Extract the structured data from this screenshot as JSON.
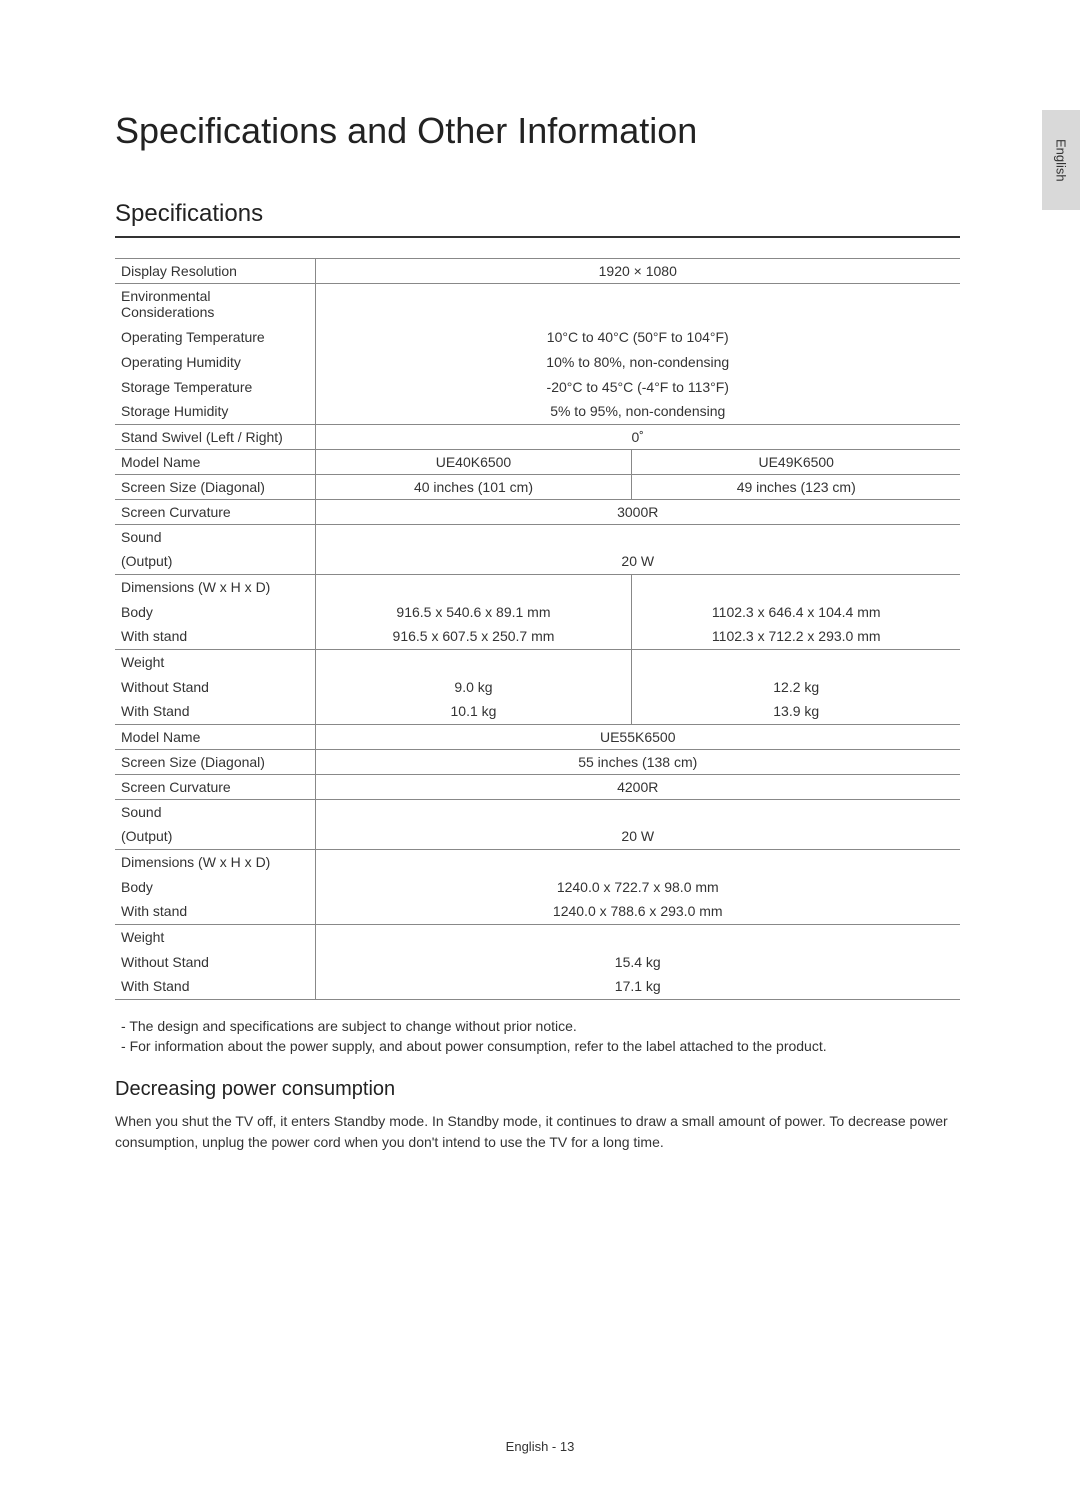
{
  "sideTab": "English",
  "title": "Specifications and Other Information",
  "section": "Specifications",
  "rows": {
    "displayRes": {
      "label": "Display Resolution",
      "value": "1920 × 1080"
    },
    "envCons": {
      "label": "Environmental Considerations"
    },
    "opTemp": {
      "label": "Operating Temperature",
      "value": "10°C to 40°C (50°F to 104°F)"
    },
    "opHum": {
      "label": "Operating Humidity",
      "value": "10% to 80%, non-condensing"
    },
    "stTemp": {
      "label": "Storage Temperature",
      "value": "-20°C to 45°C (-4°F to 113°F)"
    },
    "stHum": {
      "label": "Storage Humidity",
      "value": "5% to 95%, non-condensing"
    },
    "swivel": {
      "label": "Stand Swivel (Left / Right)",
      "value": "0˚"
    },
    "model1": {
      "label": "Model Name",
      "a": "UE40K6500",
      "b": "UE49K6500"
    },
    "screen1": {
      "label": "Screen Size (Diagonal)",
      "a": "40 inches (101 cm)",
      "b": "49 inches (123 cm)"
    },
    "curv1": {
      "label": "Screen Curvature",
      "value": "3000R"
    },
    "sound1": {
      "label": "Sound"
    },
    "output1": {
      "label": "(Output)",
      "value": "20 W"
    },
    "dims1": {
      "label": "Dimensions (W x H x D)"
    },
    "body1": {
      "label": "Body",
      "a": "916.5 x 540.6 x 89.1 mm",
      "b": "1102.3 x 646.4 x 104.4 mm"
    },
    "wstand1": {
      "label": "With stand",
      "a": "916.5 x 607.5 x 250.7 mm",
      "b": "1102.3 x 712.2 x 293.0 mm"
    },
    "weight1": {
      "label": "Weight"
    },
    "wostand1": {
      "label": "Without Stand",
      "a": "9.0 kg",
      "b": "12.2 kg"
    },
    "wstand1b": {
      "label": "With Stand",
      "a": "10.1 kg",
      "b": "13.9 kg"
    },
    "model2": {
      "label": "Model Name",
      "value": "UE55K6500"
    },
    "screen2": {
      "label": "Screen Size (Diagonal)",
      "value": "55 inches (138 cm)"
    },
    "curv2": {
      "label": "Screen Curvature",
      "value": "4200R"
    },
    "sound2": {
      "label": "Sound"
    },
    "output2": {
      "label": "(Output)",
      "value": "20 W"
    },
    "dims2": {
      "label": "Dimensions (W x H x D)"
    },
    "body2": {
      "label": "Body",
      "value": "1240.0 x 722.7 x 98.0 mm"
    },
    "wstand2": {
      "label": "With stand",
      "value": "1240.0 x 788.6 x 293.0 mm"
    },
    "weight2": {
      "label": "Weight"
    },
    "wostand2": {
      "label": "Without Stand",
      "value": "15.4 kg"
    },
    "wstand2b": {
      "label": "With Stand",
      "value": "17.1 kg"
    }
  },
  "notes": [
    "The design and specifications are subject to change without prior notice.",
    "For information about the power supply, and about power consumption, refer to the label attached to the product."
  ],
  "powerHeading": "Decreasing power consumption",
  "powerText": "When you shut the TV off, it enters Standby mode. In Standby mode, it continues to draw a small amount of power. To decrease power consumption, unplug the power cord when you don't intend to use the TV for a long time.",
  "footer": "English - 13"
}
